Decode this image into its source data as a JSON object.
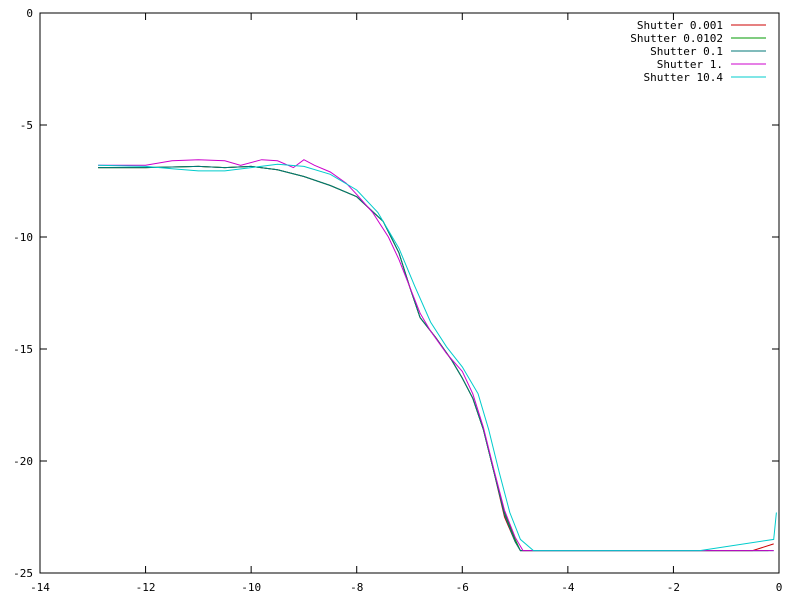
{
  "chart_data": {
    "type": "line",
    "title": "",
    "xlabel": "",
    "ylabel": "",
    "xlim": [
      -14,
      0
    ],
    "ylim": [
      -25,
      0
    ],
    "x_ticks": [
      -14,
      -12,
      -10,
      -8,
      -6,
      -4,
      -2,
      0
    ],
    "y_ticks": [
      -25,
      -20,
      -15,
      -10,
      -5,
      0
    ],
    "x_tick_labels": [
      "-14",
      "-12",
      "-10",
      "-8",
      "-6",
      "-4",
      "-2",
      "0"
    ],
    "y_tick_labels": [
      "-25",
      "-20",
      "-15",
      "-10",
      "-5",
      "0"
    ],
    "grid": false,
    "legend_position": "top-right",
    "series": [
      {
        "name": "Shutter 0.001",
        "color": "#cc0000",
        "points": [
          [
            -12.9,
            -6.9
          ],
          [
            -12,
            -6.9
          ],
          [
            -11,
            -6.85
          ],
          [
            -10.5,
            -6.9
          ],
          [
            -10,
            -6.85
          ],
          [
            -9.5,
            -7.0
          ],
          [
            -9,
            -7.3
          ],
          [
            -8.5,
            -7.7
          ],
          [
            -8,
            -8.2
          ],
          [
            -7.5,
            -9.3
          ],
          [
            -7.2,
            -10.7
          ],
          [
            -7,
            -12.2
          ],
          [
            -6.8,
            -13.6
          ],
          [
            -6.5,
            -14.5
          ],
          [
            -6.2,
            -15.5
          ],
          [
            -6,
            -16.3
          ],
          [
            -5.8,
            -17.2
          ],
          [
            -5.6,
            -18.6
          ],
          [
            -5.4,
            -20.5
          ],
          [
            -5.2,
            -22.5
          ],
          [
            -5.0,
            -23.6
          ],
          [
            -4.9,
            -24.0
          ],
          [
            -0.5,
            -24.0
          ],
          [
            -0.1,
            -23.7
          ]
        ]
      },
      {
        "name": "Shutter 0.0102",
        "color": "#009900",
        "points": [
          [
            -12.9,
            -6.9
          ],
          [
            -12,
            -6.9
          ],
          [
            -11,
            -6.85
          ],
          [
            -10.5,
            -6.9
          ],
          [
            -10,
            -6.85
          ],
          [
            -9.5,
            -7.0
          ],
          [
            -9,
            -7.3
          ],
          [
            -8.5,
            -7.7
          ],
          [
            -8,
            -8.2
          ],
          [
            -7.5,
            -9.3
          ],
          [
            -7.2,
            -10.7
          ],
          [
            -7,
            -12.2
          ],
          [
            -6.8,
            -13.6
          ],
          [
            -6.5,
            -14.5
          ],
          [
            -6.2,
            -15.5
          ],
          [
            -6,
            -16.3
          ],
          [
            -5.8,
            -17.2
          ],
          [
            -5.6,
            -18.6
          ],
          [
            -5.4,
            -20.5
          ],
          [
            -5.2,
            -22.3
          ],
          [
            -5.0,
            -23.5
          ],
          [
            -4.9,
            -24.0
          ],
          [
            -0.2,
            -24.0
          ]
        ]
      },
      {
        "name": "Shutter 0.1",
        "color": "#007777",
        "points": [
          [
            -12.9,
            -6.9
          ],
          [
            -12,
            -6.9
          ],
          [
            -11,
            -6.85
          ],
          [
            -10.5,
            -6.9
          ],
          [
            -10,
            -6.85
          ],
          [
            -9.5,
            -7.0
          ],
          [
            -9,
            -7.3
          ],
          [
            -8.5,
            -7.7
          ],
          [
            -8,
            -8.2
          ],
          [
            -7.5,
            -9.3
          ],
          [
            -7.2,
            -10.7
          ],
          [
            -7,
            -12.2
          ],
          [
            -6.8,
            -13.6
          ],
          [
            -6.5,
            -14.5
          ],
          [
            -6.2,
            -15.5
          ],
          [
            -6,
            -16.3
          ],
          [
            -5.8,
            -17.2
          ],
          [
            -5.6,
            -18.6
          ],
          [
            -5.4,
            -20.5
          ],
          [
            -5.2,
            -22.4
          ],
          [
            -5.0,
            -23.6
          ],
          [
            -4.9,
            -24.0
          ],
          [
            -0.1,
            -24.0
          ]
        ]
      },
      {
        "name": "Shutter 1.",
        "color": "#cc00cc",
        "points": [
          [
            -12.9,
            -6.8
          ],
          [
            -12,
            -6.8
          ],
          [
            -11.5,
            -6.6
          ],
          [
            -11,
            -6.55
          ],
          [
            -10.5,
            -6.6
          ],
          [
            -10.2,
            -6.8
          ],
          [
            -9.8,
            -6.55
          ],
          [
            -9.5,
            -6.6
          ],
          [
            -9.2,
            -6.9
          ],
          [
            -9,
            -6.55
          ],
          [
            -8.8,
            -6.8
          ],
          [
            -8.5,
            -7.1
          ],
          [
            -8.2,
            -7.6
          ],
          [
            -8,
            -8.1
          ],
          [
            -7.7,
            -8.9
          ],
          [
            -7.4,
            -10.0
          ],
          [
            -7.2,
            -11.0
          ],
          [
            -7,
            -12.2
          ],
          [
            -6.8,
            -13.4
          ],
          [
            -6.6,
            -14.2
          ],
          [
            -6.3,
            -15.2
          ],
          [
            -6,
            -16.0
          ],
          [
            -5.8,
            -17.0
          ],
          [
            -5.6,
            -18.5
          ],
          [
            -5.4,
            -20.4
          ],
          [
            -5.2,
            -22.2
          ],
          [
            -5.0,
            -23.4
          ],
          [
            -4.85,
            -24.0
          ],
          [
            -0.1,
            -24.0
          ]
        ]
      },
      {
        "name": "Shutter 10.4",
        "color": "#00cccc",
        "points": [
          [
            -12.9,
            -6.8
          ],
          [
            -12,
            -6.85
          ],
          [
            -11.5,
            -6.95
          ],
          [
            -11,
            -7.05
          ],
          [
            -10.5,
            -7.05
          ],
          [
            -10,
            -6.9
          ],
          [
            -9.5,
            -6.75
          ],
          [
            -9,
            -6.85
          ],
          [
            -8.5,
            -7.2
          ],
          [
            -8,
            -7.9
          ],
          [
            -7.6,
            -8.9
          ],
          [
            -7.2,
            -10.5
          ],
          [
            -6.9,
            -12.2
          ],
          [
            -6.6,
            -13.8
          ],
          [
            -6.3,
            -14.9
          ],
          [
            -6,
            -15.8
          ],
          [
            -5.7,
            -17.0
          ],
          [
            -5.5,
            -18.6
          ],
          [
            -5.3,
            -20.5
          ],
          [
            -5.1,
            -22.3
          ],
          [
            -4.9,
            -23.5
          ],
          [
            -4.65,
            -24.0
          ],
          [
            -1.5,
            -24.0
          ],
          [
            -0.1,
            -23.5
          ],
          [
            -0.05,
            -22.3
          ]
        ]
      }
    ]
  }
}
